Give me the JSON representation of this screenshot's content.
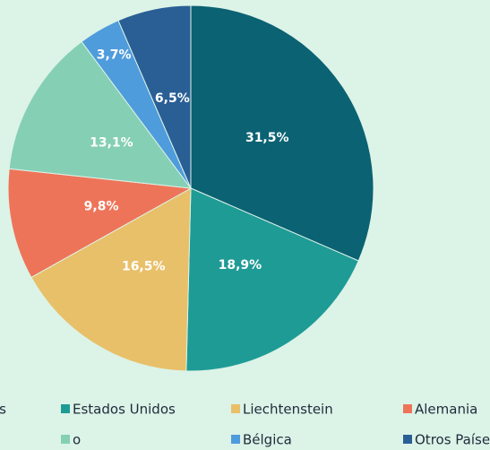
{
  "chart_data": {
    "type": "pie",
    "categories": [
      "s",
      "Estados Unidos",
      "Liechtenstein",
      "Alemania",
      "o",
      "Bélgica",
      "Otros Países"
    ],
    "values": [
      31.5,
      18.9,
      16.5,
      9.8,
      13.1,
      3.7,
      6.5
    ],
    "value_labels": [
      "31,5%",
      "18,9%",
      "16,5%",
      "9,8%",
      "13,1%",
      "3,7%",
      "6,5%"
    ],
    "colors": [
      "#0b6273",
      "#1f9b96",
      "#e8c06a",
      "#ee7459",
      "#85cfb5",
      "#4f9cdc",
      "#2a5f95"
    ],
    "legend": "bottom"
  }
}
